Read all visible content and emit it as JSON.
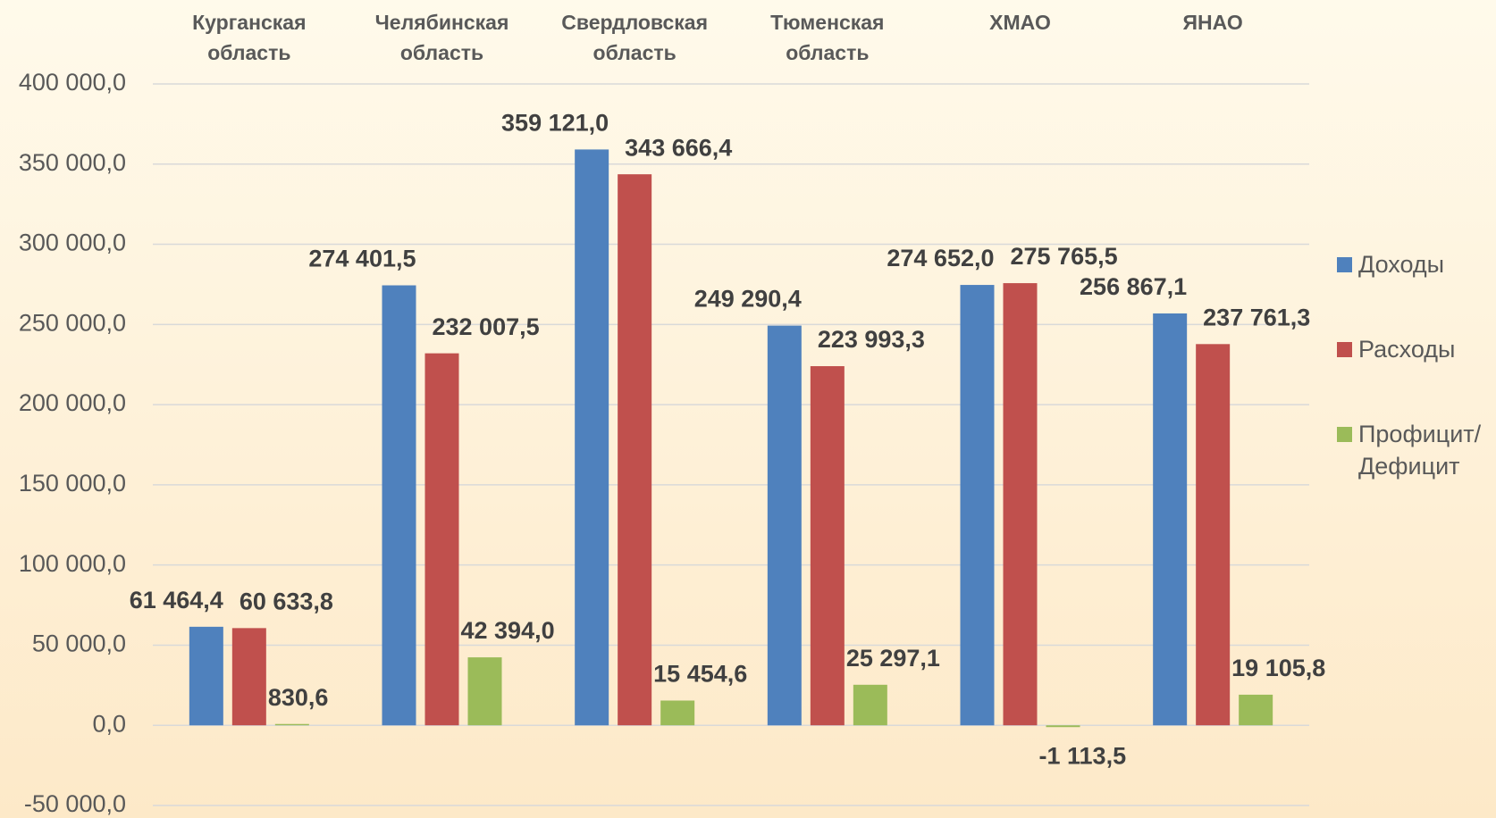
{
  "chart_data": {
    "type": "bar",
    "categories": [
      "Курганская область",
      "Челябинская область",
      "Свердловская область",
      "Тюменская область",
      "ХМАО",
      "ЯНАО"
    ],
    "series": [
      {
        "name": "Доходы",
        "color": "#4f81bd",
        "values": [
          61464.4,
          274401.5,
          359121.0,
          249290.4,
          274652.0,
          256867.1
        ],
        "value_labels": [
          "61 464,4",
          "274 401,5",
          "359 121,0",
          "249 290,4",
          "274 652,0",
          "256 867,1"
        ]
      },
      {
        "name": "Расходы",
        "color": "#c0504d",
        "values": [
          60633.8,
          232007.5,
          343666.4,
          223993.3,
          275765.5,
          237761.3
        ],
        "value_labels": [
          "60 633,8",
          "232 007,5",
          "343 666,4",
          "223 993,3",
          "275 765,5",
          "237 761,3"
        ]
      },
      {
        "name": "Профицит/ Дефицит",
        "color": "#9bbb59",
        "values": [
          830.6,
          42394.0,
          15454.6,
          25297.1,
          -1113.5,
          19105.8
        ],
        "value_labels": [
          "830,6",
          "42 394,0",
          "15 454,6",
          "25 297,1",
          "-1 113,5",
          "19 105,8"
        ]
      }
    ],
    "ylim": [
      -50000,
      400000
    ],
    "yticks": [
      {
        "value": -50000,
        "label": "-50 000,0"
      },
      {
        "value": 0,
        "label": "0,0"
      },
      {
        "value": 50000,
        "label": "50 000,0"
      },
      {
        "value": 100000,
        "label": "100 000,0"
      },
      {
        "value": 150000,
        "label": "150 000,0"
      },
      {
        "value": 200000,
        "label": "200 000,0"
      },
      {
        "value": 250000,
        "label": "250 000,0"
      },
      {
        "value": 300000,
        "label": "300 000,0"
      },
      {
        "value": 350000,
        "label": "350 000,0"
      },
      {
        "value": 400000,
        "label": "400 000,0"
      }
    ],
    "grid": true,
    "legend": "right"
  }
}
